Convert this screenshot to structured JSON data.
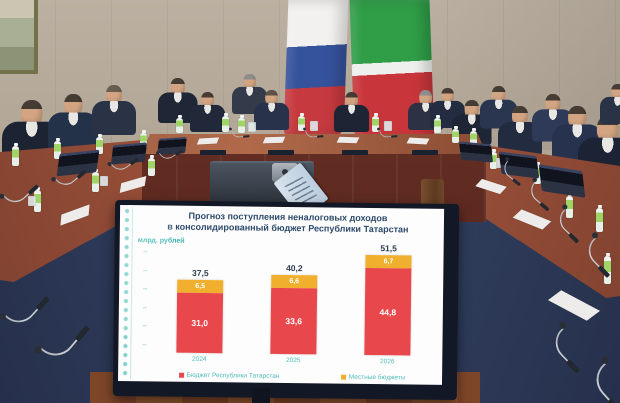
{
  "chart_data": {
    "type": "bar",
    "stacked": true,
    "title": "Прогноз поступления неналоговых доходов в консолидированный бюджет Республики Татарстан",
    "title_line1": "Прогноз поступления неналоговых доходов",
    "title_line2": "в консолидированный бюджет Республики Татарстан",
    "unit_label": "млрд. рублей",
    "categories": [
      "2024",
      "2025",
      "2026"
    ],
    "series": [
      {
        "name": "Бюджет Республики Татарстан",
        "color": "#e8474b",
        "values": [
          31.0,
          33.6,
          44.8
        ],
        "value_labels": [
          "31,0",
          "33,6",
          "44,8"
        ]
      },
      {
        "name": "Местные бюджеты",
        "color": "#f0af2c",
        "values": [
          6.5,
          6.6,
          6.7
        ],
        "value_labels": [
          "6,5",
          "6,6",
          "6,7"
        ]
      }
    ],
    "totals": [
      37.5,
      40.2,
      51.5
    ],
    "total_labels": [
      "37,5",
      "40,2",
      "51,5"
    ],
    "ylim": [
      0,
      55
    ],
    "grid": false,
    "legend_position": "bottom",
    "axis_text_color": "#3fb7b2",
    "title_color": "#2c4a6b"
  },
  "scene_colors": {
    "wall": "#b3a797",
    "table_wood": "#8a4a34",
    "table_panel_navy": "#2c3a5c",
    "tv_bezel": "#131827",
    "slide_background": "#fdfdfd",
    "bottle_label_green": "#9ed468",
    "flag_russia_stripes": [
      "#f2f1ef",
      "#35529c",
      "#c63a3f"
    ],
    "flag_tatarstan_stripes": [
      "#2f9e47",
      "#eef0ee",
      "#c8363b"
    ]
  }
}
